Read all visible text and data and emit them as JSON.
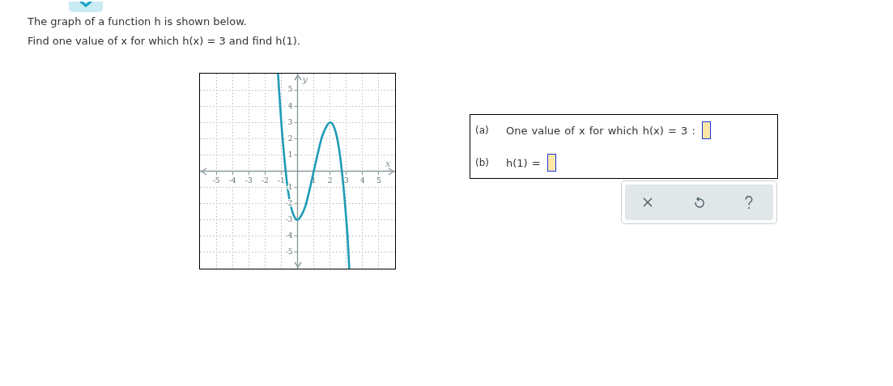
{
  "chart_data": [
    {
      "type": "line",
      "title": "The graph of a function h is shown below.",
      "subtitle": "Find one value of x for which h(x) = 3 and find h(1).",
      "xlabel": "x",
      "ylabel": "y",
      "x": [
        -1.2,
        -1,
        -0.8,
        -0.6,
        -0.4,
        -0.2,
        0,
        0.25,
        0.5,
        0.75,
        1,
        1.25,
        1.5,
        1.75,
        2,
        2.25,
        2.5,
        2.75,
        3,
        3.1,
        3.18
      ],
      "series": [
        {
          "color": "#1f9bb5",
          "values": [
            6,
            3,
            0.7,
            -1.1,
            -2.2,
            -2.8,
            -3,
            -2.7,
            -2.1,
            -1.1,
            0,
            1.1,
            2.1,
            2.7,
            3,
            2.7,
            1.7,
            -0.2,
            -3,
            -4.4,
            -6
          ]
        }
      ],
      "xlim": [
        -6,
        6
      ],
      "ylim": [
        -6,
        6
      ],
      "xticks": [
        -5,
        -4,
        -3,
        -2,
        -1,
        1,
        2,
        3,
        4,
        5
      ],
      "yticks": [
        -5,
        -4,
        -3,
        -2,
        -1,
        1,
        2,
        3,
        4,
        5
      ],
      "grid": true,
      "marker": "none",
      "line_style": "solid"
    },
    {
      "type": "other",
      "annotations": [
        "(a)",
        "One value of x for which h(x) = 3 :",
        "(b)",
        "h(1) ="
      ]
    }
  ]
}
